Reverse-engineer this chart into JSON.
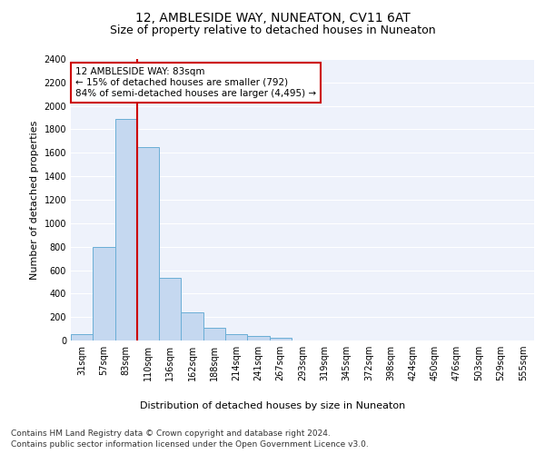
{
  "title": "12, AMBLESIDE WAY, NUNEATON, CV11 6AT",
  "subtitle": "Size of property relative to detached houses in Nuneaton",
  "xlabel": "Distribution of detached houses by size in Nuneaton",
  "ylabel": "Number of detached properties",
  "categories": [
    "31sqm",
    "57sqm",
    "83sqm",
    "110sqm",
    "136sqm",
    "162sqm",
    "188sqm",
    "214sqm",
    "241sqm",
    "267sqm",
    "293sqm",
    "319sqm",
    "345sqm",
    "372sqm",
    "398sqm",
    "424sqm",
    "450sqm",
    "476sqm",
    "503sqm",
    "529sqm",
    "555sqm"
  ],
  "values": [
    57,
    800,
    1890,
    1650,
    535,
    238,
    105,
    57,
    35,
    20,
    0,
    0,
    0,
    0,
    0,
    0,
    0,
    0,
    0,
    0,
    0
  ],
  "bar_color": "#c5d8f0",
  "bar_edge_color": "#6aaed6",
  "highlight_index": 2,
  "highlight_line_color": "#cc0000",
  "ylim": [
    0,
    2400
  ],
  "yticks": [
    0,
    200,
    400,
    600,
    800,
    1000,
    1200,
    1400,
    1600,
    1800,
    2000,
    2200,
    2400
  ],
  "annotation_text": "12 AMBLESIDE WAY: 83sqm\n← 15% of detached houses are smaller (792)\n84% of semi-detached houses are larger (4,495) →",
  "annotation_box_color": "#cc0000",
  "footnote1": "Contains HM Land Registry data © Crown copyright and database right 2024.",
  "footnote2": "Contains public sector information licensed under the Open Government Licence v3.0.",
  "background_color": "#eef2fb",
  "grid_color": "#ffffff",
  "title_fontsize": 10,
  "subtitle_fontsize": 9,
  "axis_label_fontsize": 8,
  "tick_fontsize": 7,
  "annotation_fontsize": 7.5,
  "footnote_fontsize": 6.5
}
